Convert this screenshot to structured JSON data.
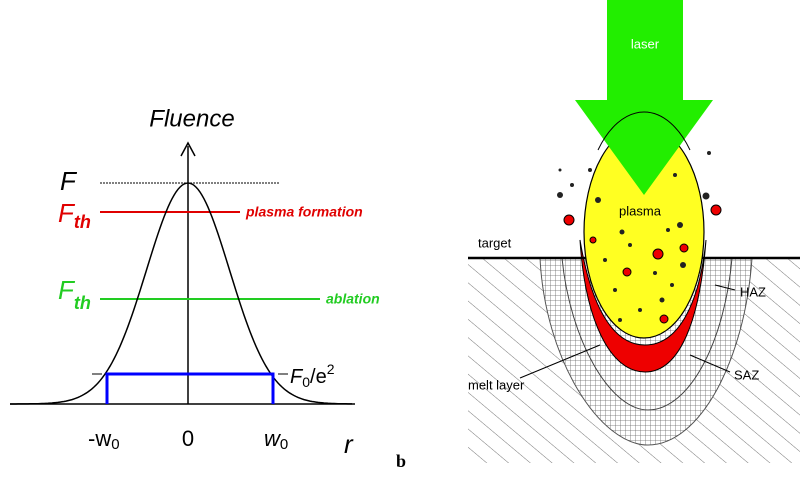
{
  "left_panel": {
    "axis_y_label": "Fluence",
    "axis_x_label": "r",
    "peak_label": "F",
    "plasma_threshold": {
      "main": "F",
      "sub": "th",
      "label": "plasma formation"
    },
    "ablation_threshold": {
      "main": "F",
      "sub": "th",
      "label": "ablation"
    },
    "beam_radius_level": {
      "main": "F",
      "sub": "0",
      "rest": "/e",
      "sup": "2"
    },
    "x_ticks": [
      {
        "main": "-w",
        "sub": "0"
      },
      {
        "main": "0"
      },
      {
        "main": "w",
        "sub": "0"
      }
    ]
  },
  "right_panel": {
    "laser": "laser",
    "plasma": "plasma",
    "target": "target",
    "haz": "HAZ",
    "saz": "SAZ",
    "melt": "melt layer"
  },
  "caption": "b"
}
